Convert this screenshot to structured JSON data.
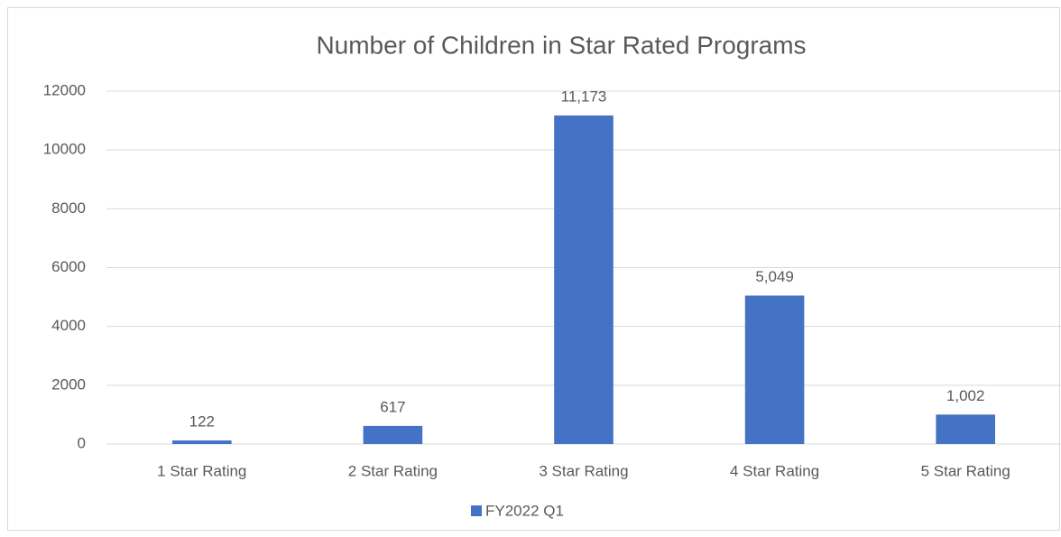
{
  "chart_data": {
    "type": "bar",
    "title": "Number of Children in Star Rated Programs",
    "categories": [
      "1 Star Rating",
      "2 Star Rating",
      "3 Star Rating",
      "4 Star Rating",
      "5 Star Rating"
    ],
    "series": [
      {
        "name": "FY2022 Q1",
        "color": "#4472c4",
        "values": [
          122,
          617,
          11173,
          5049,
          1002
        ],
        "value_labels": [
          "122",
          "617",
          "11,173",
          "5,049",
          "1,002"
        ]
      }
    ],
    "ylim": [
      0,
      12000
    ],
    "yticks": [
      0,
      2000,
      4000,
      6000,
      8000,
      10000,
      12000
    ],
    "grid": true,
    "legend": "bottom"
  }
}
